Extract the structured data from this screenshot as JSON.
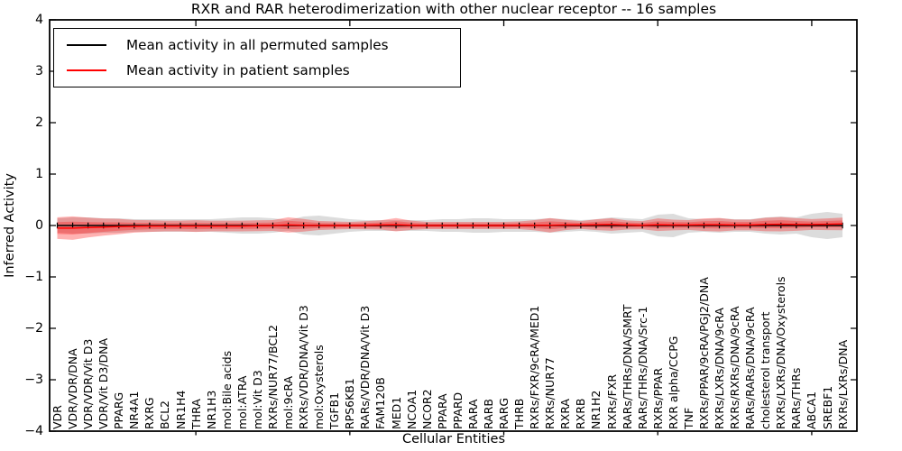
{
  "title": "RXR and RAR heterodimerization with other nuclear receptor -- 16 samples",
  "legend": {
    "position": "upper left",
    "items": [
      {
        "label": "Mean activity in all permuted samples",
        "color": "#000000"
      },
      {
        "label": "Mean activity in patient samples",
        "color": "#ff0000"
      }
    ]
  },
  "axes": {
    "x_label": "Cellular Entities",
    "y_label": "Inferred Activity",
    "y_ticks": [
      "4",
      "3",
      "2",
      "1",
      "0",
      "−1",
      "−2",
      "−3",
      "−4"
    ],
    "y_tick_values": [
      4,
      3,
      2,
      1,
      0,
      -1,
      -2,
      -3,
      -4
    ],
    "ylim": [
      -4,
      4
    ],
    "x_major_ticks_at_sample_index": [
      10,
      20,
      30,
      40,
      50
    ],
    "grid": false
  },
  "chart_data": {
    "type": "line",
    "title": "RXR and RAR heterodimerization with other nuclear receptor -- 16 samples",
    "xlabel": "Cellular Entities",
    "ylabel": "Inferred Activity",
    "ylim": [
      -4,
      4
    ],
    "legend_position": "upper left",
    "marker": "vertical-dash",
    "categories": [
      "VDR",
      "VDR/VDR/DNA",
      "VDR/VDR/Vit D3",
      "VDR/Vit D3/DNA",
      "PPARG",
      "NR4A1",
      "RXRG",
      "BCL2",
      "NR1H4",
      "THRA",
      "NR1H3",
      "mol:Bile acids",
      "mol:ATRA",
      "mol:Vit D3",
      "RXRs/NUR77/BCL2",
      "mol:9cRA",
      "RXRs/VDR/DNA/Vit D3",
      "mol:Oxysterols",
      "TGFB1",
      "RPS6KB1",
      "RARs/VDR/DNA/Vit D3",
      "FAM120B",
      "MED1",
      "NCOA1",
      "NCOR2",
      "PPARA",
      "PPARD",
      "RARA",
      "RARB",
      "RARG",
      "THRB",
      "RXRs/FXR/9cRA/MED1",
      "RXRs/NUR77",
      "RXRA",
      "RXRB",
      "NR1H2",
      "RXRs/FXR",
      "RARs/THRs/DNA/SMRT",
      "RARs/THRs/DNA/Src-1",
      "RXRs/PPAR",
      "RXR alpha/CCPG",
      "TNF",
      "RXRs/PPAR/9cRA/PGJ2/DNA",
      "RXRs/LXRs/DNA/9cRA",
      "RXRs/RXRs/DNA/9cRA",
      "RARs/RARs/DNA/9cRA",
      "cholesterol transport",
      "RXRs/LXRs/DNA/Oxysterols",
      "RARs/THRs",
      "ABCA1",
      "SREBF1",
      "RXRs/LXRs/DNA"
    ],
    "series": [
      {
        "name": "Mean activity in all permuted samples",
        "role": "permuted_mean",
        "color": "#000000",
        "values": [
          0,
          0,
          0,
          0,
          0,
          0,
          0,
          0,
          0,
          0,
          0,
          0,
          0,
          0,
          0,
          0,
          0,
          0,
          0,
          0,
          0,
          0,
          0,
          0,
          0,
          0,
          0,
          0,
          0,
          0,
          0,
          0,
          0,
          0,
          0,
          0,
          0,
          0,
          0,
          0,
          0,
          0,
          0,
          0,
          0,
          0,
          0,
          0,
          0,
          0,
          0,
          0
        ]
      },
      {
        "name": "Mean activity in patient samples",
        "role": "patient_mean",
        "color": "#ff0000",
        "values": [
          -0.05,
          -0.05,
          -0.04,
          -0.03,
          -0.02,
          -0.015,
          -0.01,
          -0.01,
          -0.01,
          -0.01,
          -0.01,
          -0.01,
          -0.01,
          -0.005,
          0,
          0.01,
          0.005,
          0,
          0,
          0,
          0.005,
          0.01,
          0.015,
          0.005,
          0,
          0,
          0,
          0,
          0,
          0,
          0.005,
          0.005,
          0.005,
          0.01,
          0.01,
          0.015,
          0.02,
          0.01,
          0.005,
          0.015,
          0.01,
          0.01,
          0.015,
          0.015,
          0.01,
          0.01,
          0.02,
          0.025,
          0.02,
          0.02,
          0.025,
          0.03
        ]
      },
      {
        "name": "Permuted samples spread (half width)",
        "role": "permuted_spread",
        "color": "#9e9e9e",
        "half_widths": [
          0.14,
          0.158,
          0.158,
          0.14,
          0.14,
          0.123,
          0.123,
          0.123,
          0.123,
          0.123,
          0.123,
          0.14,
          0.158,
          0.158,
          0.14,
          0.105,
          0.175,
          0.193,
          0.158,
          0.123,
          0.105,
          0.105,
          0.105,
          0.105,
          0.105,
          0.123,
          0.123,
          0.14,
          0.14,
          0.123,
          0.123,
          0.123,
          0.14,
          0.123,
          0.105,
          0.123,
          0.158,
          0.14,
          0.123,
          0.21,
          0.228,
          0.14,
          0.123,
          0.14,
          0.123,
          0.123,
          0.158,
          0.175,
          0.158,
          0.228,
          0.263,
          0.228
        ]
      },
      {
        "name": "Patient samples spread (half width)",
        "role": "patient_spread",
        "color": "#ff0000",
        "half_widths": [
          0.21,
          0.228,
          0.193,
          0.167,
          0.149,
          0.123,
          0.114,
          0.105,
          0.105,
          0.114,
          0.105,
          0.105,
          0.105,
          0.105,
          0.105,
          0.149,
          0.123,
          0.088,
          0.079,
          0.07,
          0.079,
          0.09,
          0.13,
          0.09,
          0.07,
          0.07,
          0.07,
          0.07,
          0.07,
          0.07,
          0.075,
          0.1,
          0.14,
          0.1,
          0.075,
          0.105,
          0.123,
          0.088,
          0.08,
          0.123,
          0.105,
          0.096,
          0.123,
          0.132,
          0.105,
          0.105,
          0.132,
          0.14,
          0.123,
          0.105,
          0.114,
          0.123
        ]
      }
    ]
  }
}
